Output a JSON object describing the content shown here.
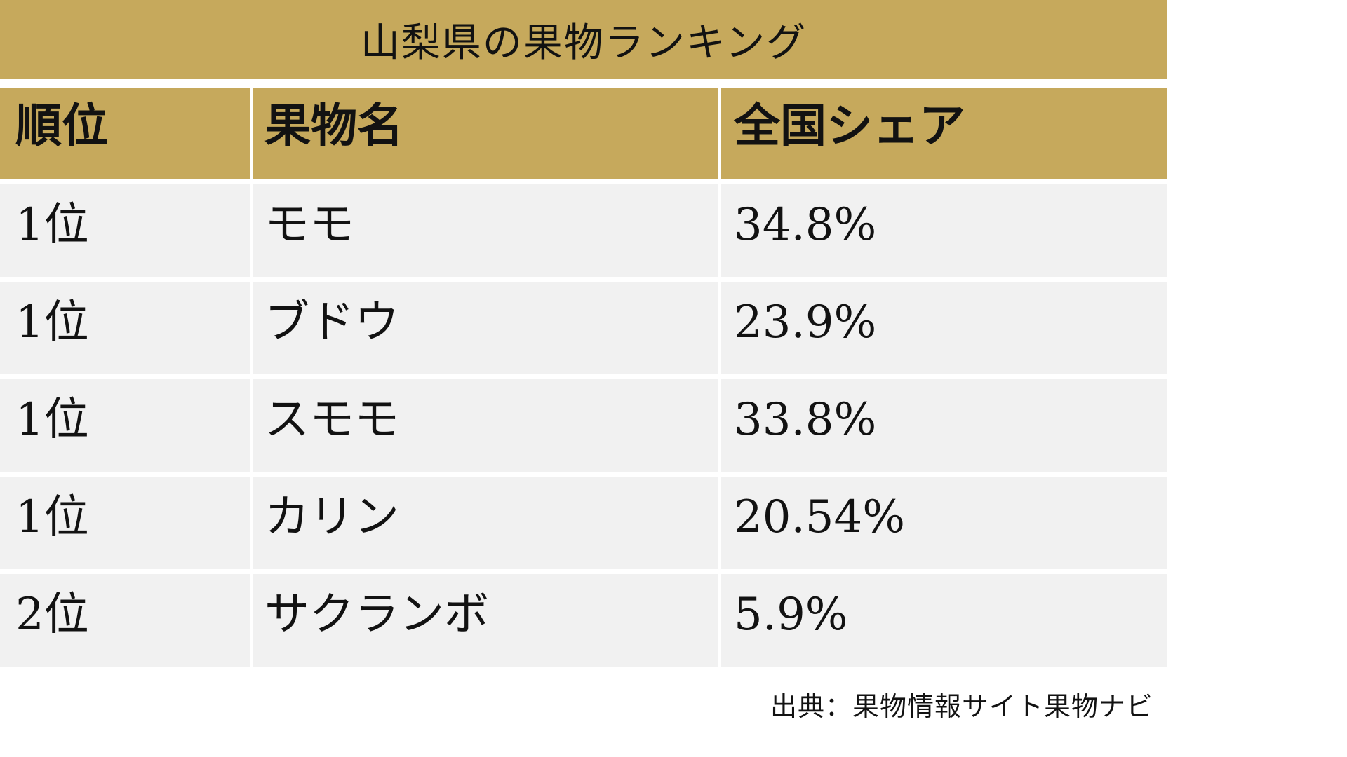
{
  "title": "山梨県の果物ランキング",
  "table": {
    "headers": {
      "rank": "順位",
      "fruit": "果物名",
      "share": "全国シェア"
    },
    "rows": [
      {
        "rank": "1位",
        "fruit": "モモ",
        "share": "34.8%"
      },
      {
        "rank": "1位",
        "fruit": "ブドウ",
        "share": "23.9%"
      },
      {
        "rank": "1位",
        "fruit": "スモモ",
        "share": "33.8%"
      },
      {
        "rank": "1位",
        "fruit": "カリン",
        "share": "20.54%"
      },
      {
        "rank": "2位",
        "fruit": "サクランボ",
        "share": "5.9%"
      }
    ]
  },
  "source": "出典：果物情報サイト果物ナビ",
  "colors": {
    "accent_gold": "#c6a95c",
    "row_gray": "#f1f1f1",
    "text": "#121212",
    "background": "#ffffff"
  },
  "chart_data": {
    "type": "table",
    "title": "山梨県の果物ランキング",
    "columns": [
      "順位",
      "果物名",
      "全国シェア"
    ],
    "rows": [
      [
        "1位",
        "モモ",
        "34.8%"
      ],
      [
        "1位",
        "ブドウ",
        "23.9%"
      ],
      [
        "1位",
        "スモモ",
        "33.8%"
      ],
      [
        "1位",
        "カリン",
        "20.54%"
      ],
      [
        "2位",
        "サクランボ",
        "5.9%"
      ]
    ],
    "shares_percent": [
      34.8,
      23.9,
      33.8,
      20.54,
      5.9
    ],
    "source": "出典：果物情報サイト果物ナビ",
    "layout": "title banner on top, 3-column table, source note bottom-right"
  }
}
